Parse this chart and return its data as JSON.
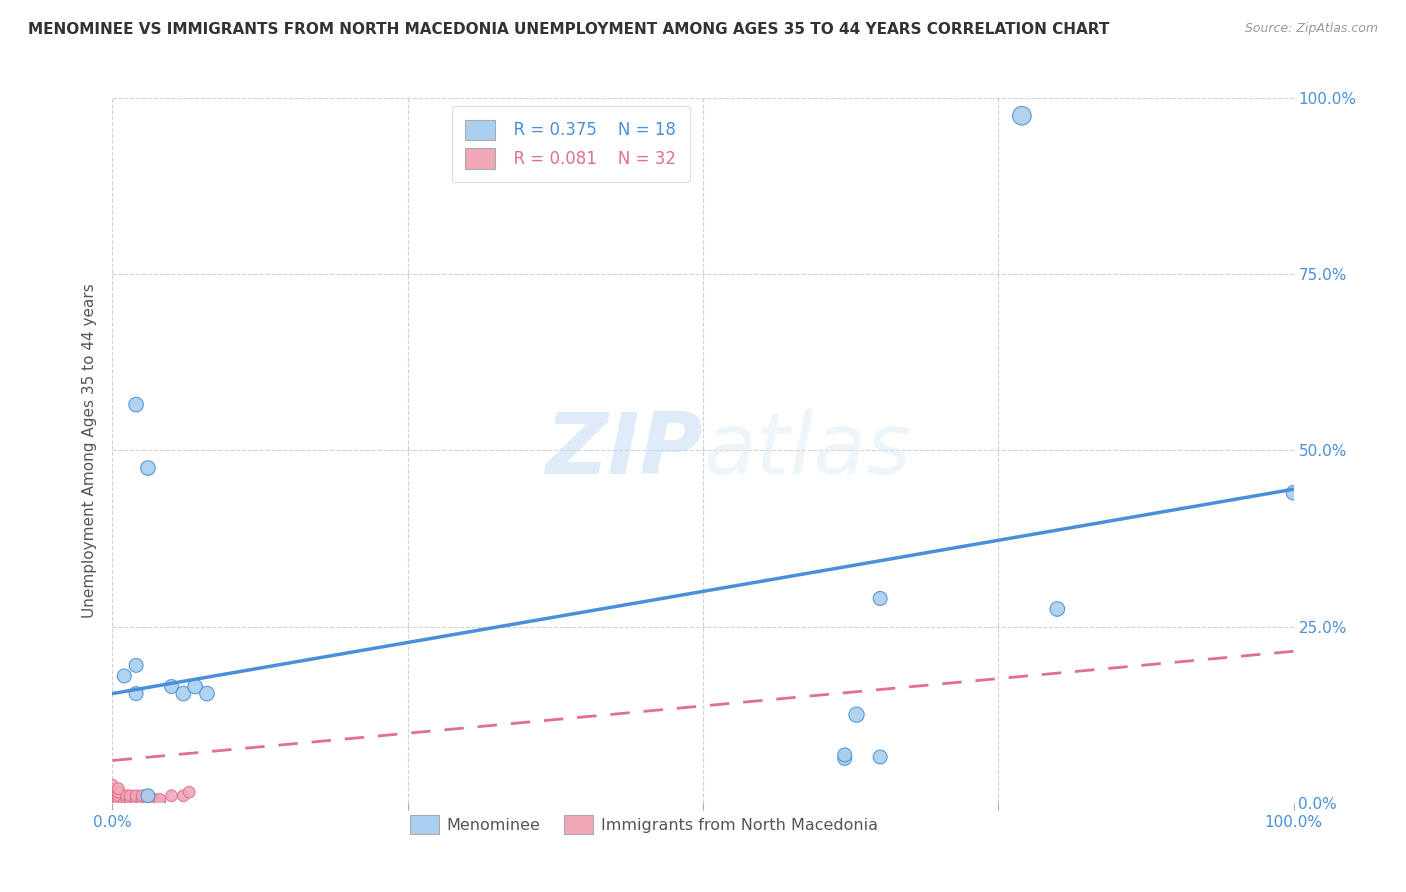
{
  "title": "MENOMINEE VS IMMIGRANTS FROM NORTH MACEDONIA UNEMPLOYMENT AMONG AGES 35 TO 44 YEARS CORRELATION CHART",
  "source": "Source: ZipAtlas.com",
  "ylabel": "Unemployment Among Ages 35 to 44 years",
  "xlim": [
    0,
    1.0
  ],
  "ylim": [
    0,
    1.0
  ],
  "xticks": [
    0.0,
    0.25,
    0.5,
    0.75,
    1.0
  ],
  "yticks": [
    0.0,
    0.25,
    0.5,
    0.75,
    1.0
  ],
  "xticklabels": [
    "0.0%",
    "",
    "",
    "",
    "100.0%"
  ],
  "right_yticklabels": [
    "0.0%",
    "25.0%",
    "50.0%",
    "75.0%",
    "100.0%"
  ],
  "menominee_color": "#aacfee",
  "immigrants_color": "#f0a8b8",
  "menominee_line_color": "#4a90d9",
  "immigrants_line_color": "#e07090",
  "legend_r_menominee": "R = 0.375",
  "legend_n_menominee": "N = 18",
  "legend_r_immigrants": "R = 0.081",
  "legend_n_immigrants": "N = 32",
  "menominee_scatter_x": [
    0.02,
    0.03,
    0.02,
    0.01,
    0.05,
    0.06,
    0.07,
    0.08,
    0.65,
    0.77,
    0.8,
    0.63,
    0.62,
    0.65,
    0.62,
    1.0,
    0.02,
    0.03
  ],
  "menominee_scatter_y": [
    0.565,
    0.475,
    0.195,
    0.18,
    0.165,
    0.155,
    0.165,
    0.155,
    0.29,
    0.975,
    0.275,
    0.125,
    0.063,
    0.065,
    0.068,
    0.44,
    0.155,
    0.01
  ],
  "menominee_scatter_size": [
    110,
    110,
    100,
    100,
    100,
    110,
    110,
    110,
    100,
    180,
    110,
    120,
    100,
    100,
    100,
    110,
    100,
    100
  ],
  "immigrants_scatter_x": [
    0.0,
    0.0,
    0.0,
    0.0,
    0.0,
    0.0,
    0.005,
    0.005,
    0.005,
    0.005,
    0.005,
    0.01,
    0.012,
    0.012,
    0.015,
    0.015,
    0.015,
    0.02,
    0.02,
    0.02,
    0.025,
    0.025,
    0.025,
    0.03,
    0.03,
    0.03,
    0.035,
    0.04,
    0.04,
    0.05,
    0.06,
    0.065
  ],
  "immigrants_scatter_y": [
    0.0,
    0.005,
    0.01,
    0.015,
    0.02,
    0.025,
    0.0,
    0.005,
    0.01,
    0.015,
    0.02,
    0.0,
    0.005,
    0.01,
    0.0,
    0.005,
    0.01,
    0.0,
    0.005,
    0.01,
    0.0,
    0.005,
    0.01,
    0.0,
    0.005,
    0.01,
    0.005,
    0.0,
    0.005,
    0.01,
    0.01,
    0.015
  ],
  "immigrants_scatter_size": [
    70,
    70,
    70,
    70,
    70,
    70,
    70,
    70,
    70,
    70,
    70,
    70,
    70,
    70,
    70,
    70,
    70,
    70,
    70,
    70,
    70,
    70,
    70,
    70,
    70,
    70,
    70,
    70,
    70,
    70,
    70,
    70
  ],
  "menominee_line_y_start": 0.155,
  "menominee_line_y_end": 0.445,
  "immigrants_line_y_start": 0.06,
  "immigrants_line_y_end": 0.215,
  "watermark_zip": "ZIP",
  "watermark_atlas": "atlas",
  "background_color": "#ffffff",
  "grid_color": "#cccccc",
  "tick_label_color": "#4a90d9",
  "title_fontsize": 11,
  "source_fontsize": 9
}
